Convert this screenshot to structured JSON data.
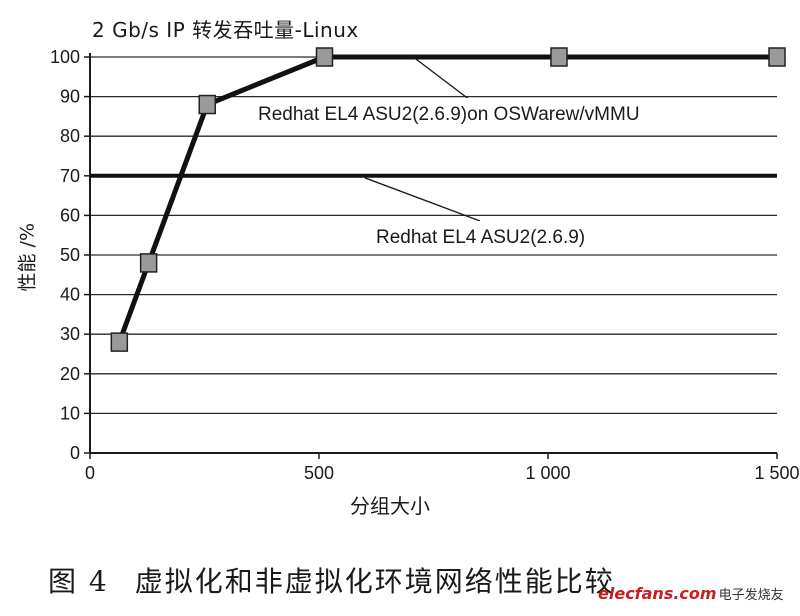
{
  "chart_data": {
    "type": "line",
    "title": "2 Gb/s IP 转发吞吐量-Linux",
    "xlabel": "分组大小",
    "ylabel": "性能 /%",
    "xlim": [
      0,
      1500
    ],
    "ylim": [
      0,
      100
    ],
    "x_ticks": [
      "0",
      "500",
      "1 000",
      "1 500"
    ],
    "y_ticks": [
      "0",
      "10",
      "20",
      "30",
      "40",
      "50",
      "60",
      "70",
      "80",
      "90",
      "100"
    ],
    "grid": "horizontal",
    "series": [
      {
        "name": "Redhat EL4 ASU2(2.6.9)on OSWarew/vMMU",
        "x": [
          64,
          128,
          256,
          512,
          1024,
          1500
        ],
        "y": [
          28,
          48,
          88,
          100,
          100,
          100
        ]
      },
      {
        "name": "Redhat EL4 ASU2(2.6.9)",
        "x": [
          0,
          1500
        ],
        "y": [
          70,
          70
        ]
      }
    ],
    "annotations": [
      {
        "text": "Redhat EL4 ASU2(2.6.9)on OSWarew/vMMU",
        "points_to": "series-1"
      },
      {
        "text": "Redhat EL4 ASU2(2.6.9)",
        "points_to": "series-2"
      }
    ]
  },
  "caption": {
    "figure_number": "图 4",
    "text": "虚拟化和非虚拟化环境网络性能比较"
  },
  "watermark": {
    "brand": "elecfans.com",
    "chinese": "电子发烧友"
  }
}
